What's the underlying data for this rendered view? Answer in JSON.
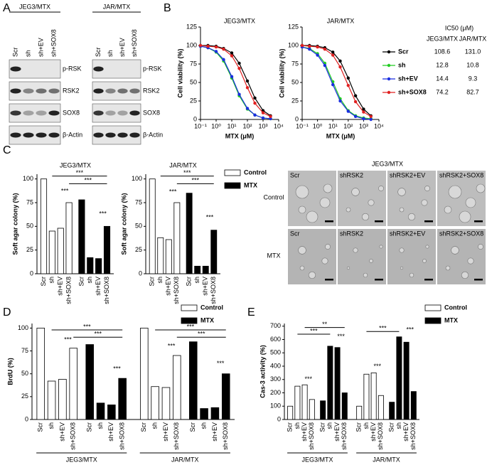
{
  "panel_labels": [
    "A",
    "B",
    "C",
    "D",
    "E"
  ],
  "blots": [
    {
      "title": "JEG3/MTX",
      "lanes": [
        "Scr",
        "sh",
        "sh+EV",
        "sh+SOX8"
      ],
      "rows": [
        "p-RSK",
        "RSK2",
        "SOX8",
        "β-Actin"
      ]
    },
    {
      "title": "JAR/MTX",
      "lanes": [
        "Scr",
        "sh",
        "sh+EV",
        "sh+SOX8"
      ],
      "rows": [
        "p-RSK",
        "RSK2",
        "SOX8",
        "β-Actin"
      ]
    }
  ],
  "ic50_table": {
    "title": "IC50 (μM)",
    "columns": [
      "JEG3/MTX",
      "JAR/MTX"
    ],
    "rows": [
      [
        "108.6",
        "131.0"
      ],
      [
        "12.8",
        "10.8"
      ],
      [
        "14.4",
        "9.3"
      ],
      [
        "74.2",
        "82.7"
      ]
    ]
  },
  "micrographs": {
    "title": "JEG3/MTX",
    "row_labels": [
      "Control",
      "MTX"
    ],
    "labels": [
      [
        "Scr",
        "shRSK2",
        "shRSK2+EV",
        "shRSK2+SOX8"
      ],
      [
        "Scr",
        "shRSK2",
        "shRSK2+EV",
        "shRSK2+SOX8"
      ]
    ]
  },
  "chart_data": [
    {
      "type": "line",
      "title": "JEG3/MTX",
      "x_label": "MTX (μM)",
      "y_label": "Cell viability (%)",
      "x_scale": "log",
      "x": [
        0.1,
        0.3,
        1,
        3,
        10,
        30,
        100,
        300,
        1000,
        3000
      ],
      "xlim": [
        0.1,
        10000
      ],
      "xticks": [
        {
          "value": 0.1,
          "label": "10⁻¹"
        },
        {
          "value": 1,
          "label": "10⁰"
        },
        {
          "value": 10,
          "label": "10¹"
        },
        {
          "value": 100,
          "label": "10²"
        },
        {
          "value": 1000,
          "label": "10³"
        },
        {
          "value": 10000,
          "label": "10⁴"
        }
      ],
      "ylim": [
        0,
        125
      ],
      "yticks": [
        0,
        25,
        50,
        75,
        100,
        125
      ],
      "series": [
        {
          "color": "#000000",
          "values": [
            100,
            100,
            99,
            96,
            90,
            76,
            52,
            29,
            12,
            5
          ]
        },
        {
          "color": "#22cc22",
          "values": [
            99,
            97,
            91,
            79,
            56,
            32,
            14,
            6,
            2,
            1
          ]
        },
        {
          "color": "#1a2ee0",
          "values": [
            99,
            97,
            92,
            81,
            58,
            34,
            15,
            6,
            2,
            1
          ]
        },
        {
          "color": "#e02020",
          "values": [
            100,
            99,
            98,
            95,
            86,
            69,
            43,
            22,
            9,
            4
          ]
        }
      ]
    },
    {
      "type": "line",
      "title": "JAR/MTX",
      "x_label": "MTX (μM)",
      "y_label": "Cell viability (%)",
      "x_scale": "log",
      "x": [
        0.1,
        0.3,
        1,
        3,
        10,
        30,
        100,
        300,
        1000,
        3000
      ],
      "xlim": [
        0.1,
        10000
      ],
      "xticks": [
        {
          "value": 0.1,
          "label": "10⁻¹"
        },
        {
          "value": 1,
          "label": "10⁰"
        },
        {
          "value": 10,
          "label": "10¹"
        },
        {
          "value": 100,
          "label": "10²"
        },
        {
          "value": 1000,
          "label": "10³"
        },
        {
          "value": 10000,
          "label": "10⁴"
        }
      ],
      "ylim": [
        0,
        125
      ],
      "yticks": [
        0,
        25,
        50,
        75,
        100,
        125
      ],
      "legend": true,
      "series": [
        {
          "name": "Scr",
          "color": "#000000",
          "values": [
            100,
            100,
            99,
            97,
            91,
            79,
            56,
            32,
            14,
            5
          ]
        },
        {
          "name": "sh",
          "color": "#22cc22",
          "values": [
            98,
            96,
            89,
            76,
            51,
            28,
            12,
            5,
            2,
            1
          ]
        },
        {
          "name": "sh+EV",
          "color": "#1a2ee0",
          "values": [
            98,
            95,
            87,
            73,
            47,
            25,
            11,
            4,
            1,
            0
          ]
        },
        {
          "name": "sh+SOX8",
          "color": "#e02020",
          "values": [
            100,
            99,
            98,
            95,
            87,
            71,
            46,
            24,
            10,
            4
          ]
        }
      ]
    },
    {
      "type": "bar",
      "title": "JEG3/MTX",
      "y_label": "Soft agar colony (%)",
      "categories": [
        "Scr",
        "sh",
        "sh+EV",
        "sh+SOX8",
        "Scr",
        "sh",
        "sh+EV",
        "sh+SOX8"
      ],
      "ylim": [
        0,
        105
      ],
      "yticks": [
        0,
        25,
        50,
        75,
        100
      ],
      "series": [
        {
          "color": "#ffffff",
          "values": [
            100,
            45,
            48,
            75,
            null,
            null,
            null,
            null
          ]
        },
        {
          "color": "#000000",
          "values": [
            null,
            null,
            null,
            null,
            78,
            17,
            16,
            50
          ]
        }
      ],
      "significance": [
        "***",
        "***",
        "***",
        "***"
      ]
    },
    {
      "type": "bar",
      "title": "JAR/MTX",
      "y_label": "Soft agar colony (%)",
      "legend": true,
      "categories": [
        "Scr",
        "sh",
        "sh+EV",
        "sh+SOX8",
        "Scr",
        "sh",
        "sh+EV",
        "sh+SOX8"
      ],
      "ylim": [
        0,
        105
      ],
      "yticks": [
        0,
        25,
        50,
        75,
        100
      ],
      "series": [
        {
          "name": "Control",
          "color": "#ffffff",
          "values": [
            100,
            38,
            36,
            75,
            null,
            null,
            null,
            null
          ]
        },
        {
          "name": "MTX",
          "color": "#000000",
          "values": [
            null,
            null,
            null,
            null,
            85,
            8,
            8,
            46
          ]
        }
      ],
      "significance": [
        "***",
        "***",
        "***",
        "***"
      ]
    },
    {
      "type": "bar",
      "y_label": "BrdU (%)",
      "legend": true,
      "groups": [
        "JEG3/MTX",
        "JAR/MTX"
      ],
      "categories": [
        "Scr",
        "sh",
        "sh+EV",
        "sh+SOX8",
        "Scr",
        "sh",
        "sh+EV",
        "sh+SOX8",
        "Scr",
        "sh",
        "sh+EV",
        "sh+SOX8",
        "Scr",
        "sh",
        "sh+EV",
        "sh+SOX8"
      ],
      "ylim": [
        0,
        105
      ],
      "yticks": [
        0,
        25,
        50,
        75,
        100
      ],
      "series": [
        {
          "name": "Control",
          "color": "#ffffff",
          "values": [
            100,
            42,
            44,
            78,
            null,
            null,
            null,
            null,
            100,
            36,
            35,
            70,
            null,
            null,
            null,
            null
          ]
        },
        {
          "name": "MTX",
          "color": "#000000",
          "values": [
            null,
            null,
            null,
            null,
            82,
            18,
            16,
            45,
            null,
            null,
            null,
            null,
            85,
            12,
            13,
            50
          ]
        }
      ],
      "significance": [
        "***",
        "***",
        "***",
        "***",
        "***",
        "***",
        "***",
        "***"
      ]
    },
    {
      "type": "bar",
      "y_label": "Cas-3 activity (%)",
      "legend": true,
      "groups": [
        "JEG3/MTX",
        "JAR/MTX"
      ],
      "categories": [
        "Scr",
        "sh",
        "sh+EV",
        "sh+SOX8",
        "Scr",
        "sh",
        "sh+EV",
        "sh+SOX8",
        "Scr",
        "sh",
        "sh+EV",
        "sh+SOX8",
        "Scr",
        "sh",
        "sh+EV",
        "sh+SOX8"
      ],
      "ylim": [
        0,
        720
      ],
      "yticks": [
        0,
        100,
        200,
        300,
        400,
        500,
        600,
        700
      ],
      "series": [
        {
          "name": "Control",
          "color": "#ffffff",
          "values": [
            100,
            250,
            260,
            150,
            null,
            null,
            null,
            null,
            100,
            340,
            350,
            180,
            null,
            null,
            null,
            null
          ]
        },
        {
          "name": "MTX",
          "color": "#000000",
          "values": [
            null,
            null,
            null,
            null,
            140,
            550,
            540,
            200,
            null,
            null,
            null,
            null,
            130,
            620,
            580,
            210
          ]
        }
      ],
      "significance": [
        "**",
        "***",
        "***",
        "***",
        "***",
        "***",
        "***"
      ]
    }
  ]
}
